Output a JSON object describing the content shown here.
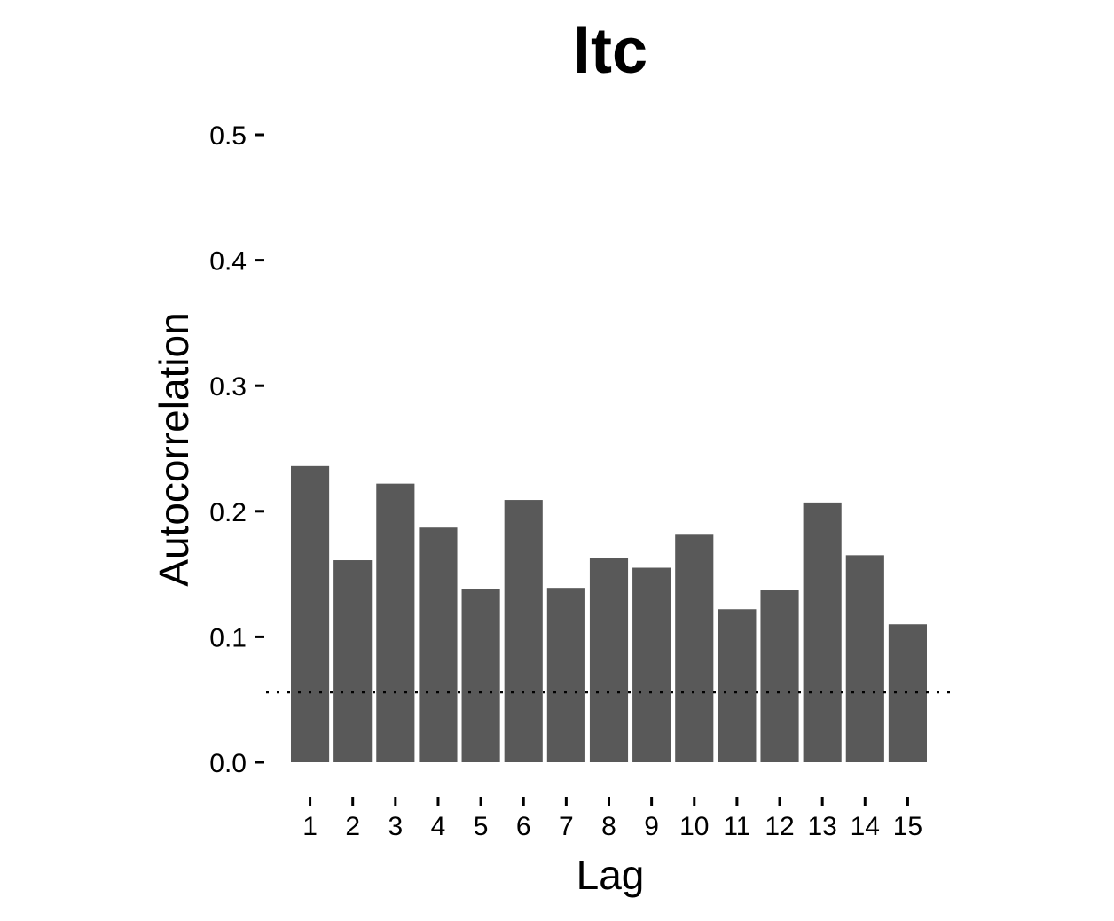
{
  "chart_data": {
    "type": "bar",
    "title": "ltc",
    "xlabel": "Lag",
    "ylabel": "Autocorrelation",
    "categories": [
      "1",
      "2",
      "3",
      "4",
      "5",
      "6",
      "7",
      "8",
      "9",
      "10",
      "11",
      "12",
      "13",
      "14",
      "15"
    ],
    "values": [
      0.236,
      0.161,
      0.222,
      0.187,
      0.138,
      0.209,
      0.139,
      0.163,
      0.155,
      0.182,
      0.122,
      0.137,
      0.207,
      0.165,
      0.11
    ],
    "ylim": [
      0,
      0.5
    ],
    "yticks": [
      "0.0",
      "0.1",
      "0.2",
      "0.3",
      "0.4",
      "0.5"
    ],
    "reference_line": {
      "value": 0.056,
      "style": "dotted"
    },
    "grid": false,
    "legend": "none",
    "colors": {
      "bar": "#595959",
      "reference_line": "#000000",
      "axis": "#000000"
    }
  }
}
